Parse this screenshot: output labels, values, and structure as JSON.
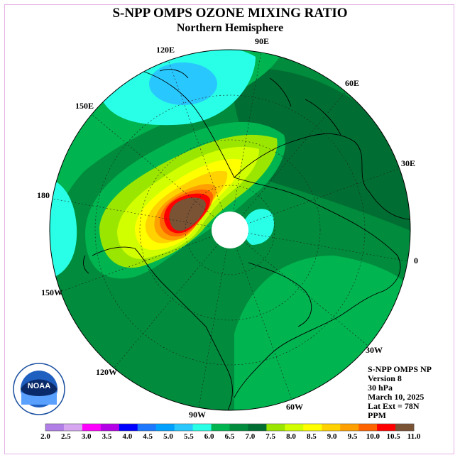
{
  "header": {
    "title": "S-NPP OMPS OZONE MIXING RATIO",
    "subtitle": "Northern Hemisphere"
  },
  "longitude_labels": [
    "90E",
    "60E",
    "30E",
    "0",
    "30W",
    "60W",
    "90W",
    "120W",
    "150W",
    "180",
    "150E",
    "120E"
  ],
  "info": {
    "instrument": "S-NPP OMPS NP",
    "version": "Version 8",
    "pressure": "30 hPa",
    "date": "March 10, 2025",
    "lat_ext": "Lat Ext = 78N",
    "units": "PPM"
  },
  "colorbar": {
    "ticks": [
      "2.0",
      "2.5",
      "3.0",
      "3.5",
      "4.0",
      "4.5",
      "5.0",
      "5.5",
      "6.0",
      "6.5",
      "7.0",
      "7.5",
      "8.0",
      "8.5",
      "9.0",
      "9.5",
      "10.0",
      "10.5",
      "11.0"
    ],
    "colors": [
      "#b07ee6",
      "#d6a6f0",
      "#ff00ff",
      "#b400e6",
      "#0000ff",
      "#1e78ff",
      "#00a0ff",
      "#28c8ff",
      "#28ffe6",
      "#00b450",
      "#008c3c",
      "#006e32",
      "#9be600",
      "#d2ff00",
      "#ffff00",
      "#ffd200",
      "#ffa000",
      "#ff6400",
      "#ff0000",
      "#7a5234"
    ]
  },
  "logo": {
    "text": "NOAA",
    "ring_text": "NATIONAL OCEANIC AND ATMOSPHERIC ADMINISTRATION · U.S. DEPARTMENT OF COMMERCE"
  }
}
